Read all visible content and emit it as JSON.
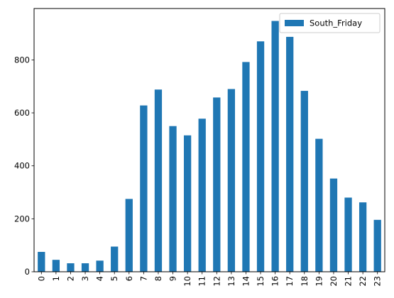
{
  "chart_data": {
    "type": "bar",
    "categories": [
      "0",
      "1",
      "2",
      "3",
      "4",
      "5",
      "6",
      "7",
      "8",
      "9",
      "10",
      "11",
      "12",
      "13",
      "14",
      "15",
      "16",
      "17",
      "18",
      "19",
      "20",
      "21",
      "22",
      "23"
    ],
    "series": [
      {
        "name": "South_Friday",
        "color": "#1f77b4",
        "values": [
          75,
          45,
          32,
          32,
          42,
          95,
          275,
          628,
          688,
          550,
          515,
          578,
          658,
          690,
          792,
          870,
          947,
          887,
          683,
          502,
          352,
          280,
          262,
          196
        ]
      }
    ],
    "title": "",
    "xlabel": "",
    "ylabel": "",
    "ylim": [
      0,
      994
    ],
    "yticks": [
      0,
      200,
      400,
      600,
      800
    ],
    "grid": false,
    "legend_position": "upper right"
  }
}
